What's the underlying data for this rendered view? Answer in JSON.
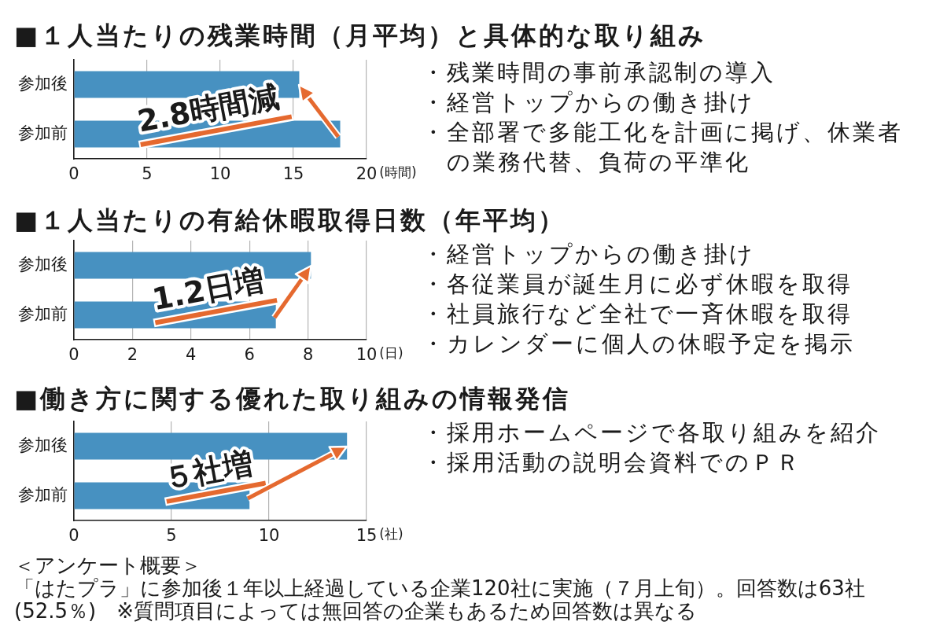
{
  "chart_data": [
    {
      "type": "bar",
      "title": "■１人当たりの残業時間（月平均）と具体的な取り組み",
      "orientation": "horizontal",
      "categories": [
        "参加後",
        "参加前"
      ],
      "values": [
        15.4,
        18.2
      ],
      "color": "#4791c1",
      "xlim": [
        0,
        20
      ],
      "xticks": [
        0,
        5,
        10,
        15,
        20
      ],
      "xlabel": "(時間)",
      "grid": "x",
      "annotations": [
        {
          "text": "2.8時間減",
          "x": 15.4,
          "y": "参加後"
        }
      ]
    },
    {
      "type": "other",
      "annotations": [
        "・残業時間の事前承認制の導入",
        "・経営トップからの働き掛け",
        "・全部署で多能工化を計画に掲げ、休業者の業務代替、負荷の平準化"
      ]
    },
    {
      "type": "bar",
      "title": "■１人当たりの有給休暇取得日数（年平均）",
      "orientation": "horizontal",
      "categories": [
        "参加後",
        "参加前"
      ],
      "values": [
        8.1,
        6.9
      ],
      "color": "#4791c1",
      "xlim": [
        0,
        10
      ],
      "xticks": [
        0,
        2,
        4,
        6,
        8,
        10
      ],
      "xlabel": "(日)",
      "grid": "x",
      "annotations": [
        {
          "text": "1.2日増",
          "x": 8.1,
          "y": "参加後"
        }
      ]
    },
    {
      "type": "other",
      "annotations": [
        "・経営トップからの働き掛け",
        "・各従業員が誕生月に必ず休暇を取得",
        "・社員旅行など全社で一斉休暇を取得",
        "・カレンダーに個人の休暇予定を掲示"
      ]
    },
    {
      "type": "bar",
      "title": "■働き方に関する優れた取り組みの情報発信",
      "orientation": "horizontal",
      "categories": [
        "参加後",
        "参加前"
      ],
      "values": [
        14,
        9
      ],
      "color": "#4791c1",
      "xlim": [
        0,
        15
      ],
      "xticks": [
        0,
        5,
        10,
        15
      ],
      "xlabel": "(社)",
      "grid": "x",
      "annotations": [
        "５社増"
      ]
    },
    {
      "type": "other",
      "annotations": [
        "・採用ホームページで各取り組みを紹介",
        "・採用活動の説明会資料でのＰＲ"
      ]
    },
    {
      "type": "other",
      "title": "＜アンケート概要＞",
      "annotations": [
        "「はたプラ」に参加後１年以上経過している企業120社に実施（７月上旬）。回答数は63社(52.5％)　※質問項目によっては無回答の企業もあるため回答数は異なる"
      ]
    }
  ]
}
